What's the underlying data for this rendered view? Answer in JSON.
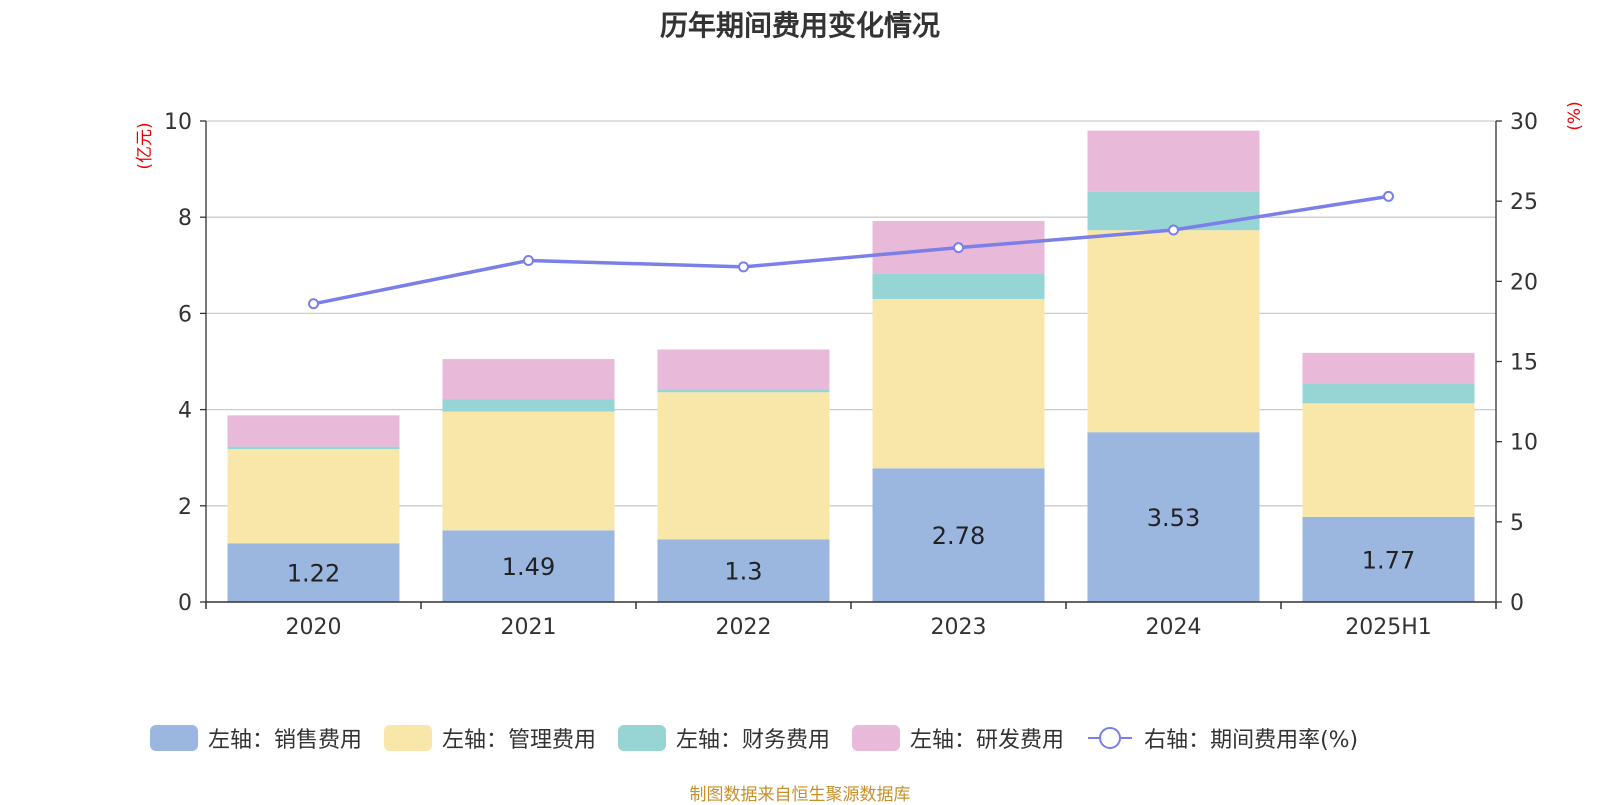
{
  "title": "历年期间费用变化情况",
  "source": "制图数据来自恒生聚源数据库",
  "colors": {
    "sales": "#9bb7e0",
    "admin": "#f8e7a8",
    "finance": "#96d5d4",
    "rd": "#e8b9d9",
    "rate": "#7b7fe8",
    "axis_unit": "#ee0000",
    "source": "#c8902a",
    "grid": "#cccccc",
    "axis": "#333333"
  },
  "chart_data": {
    "type": "bar",
    "stacked": true,
    "categories": [
      "2020",
      "2021",
      "2022",
      "2023",
      "2024",
      "2025H1"
    ],
    "y_left": {
      "unit_label": "(亿元)",
      "ylim": [
        0,
        10
      ],
      "ticks": [
        "0",
        "2",
        "4",
        "6",
        "8",
        "10"
      ]
    },
    "y_right": {
      "unit_label": "(%)",
      "ylim": [
        0,
        30
      ],
      "ticks": [
        "0",
        "5",
        "10",
        "15",
        "20",
        "25",
        "30"
      ]
    },
    "series": [
      {
        "key": "sales",
        "name": "左轴：销售费用",
        "axis": "left",
        "values": [
          1.22,
          1.49,
          1.3,
          2.78,
          3.53,
          1.77
        ],
        "labels": [
          "1.22",
          "1.49",
          "1.3",
          "2.78",
          "3.53",
          "1.77"
        ]
      },
      {
        "key": "admin",
        "name": "左轴：管理费用",
        "axis": "left",
        "values": [
          1.96,
          2.47,
          3.06,
          3.52,
          4.2,
          2.36
        ]
      },
      {
        "key": "finance",
        "name": "左轴：财务费用",
        "axis": "left",
        "values": [
          0.05,
          0.25,
          0.06,
          0.52,
          0.8,
          0.42
        ]
      },
      {
        "key": "rd",
        "name": "左轴：研发费用",
        "axis": "left",
        "values": [
          0.65,
          0.84,
          0.83,
          1.1,
          1.27,
          0.63
        ]
      },
      {
        "key": "rate",
        "name": "右轴：期间费用率(%)",
        "axis": "right",
        "type": "line",
        "values": [
          18.6,
          21.3,
          20.9,
          22.1,
          23.2,
          25.3
        ]
      }
    ],
    "grid": true,
    "legend_position": "bottom"
  }
}
